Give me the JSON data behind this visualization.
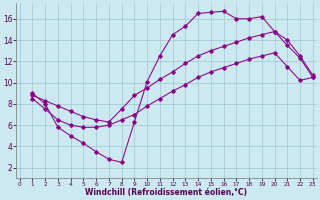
{
  "xlabel": "Windchill (Refroidissement éolien,°C)",
  "background_color": "#cce8f0",
  "line_color": "#880088",
  "xlim": [
    -0.3,
    23.3
  ],
  "ylim": [
    1.0,
    17.5
  ],
  "yticks": [
    2,
    4,
    6,
    8,
    10,
    12,
    14,
    16
  ],
  "xticks": [
    0,
    1,
    2,
    3,
    4,
    5,
    6,
    7,
    8,
    9,
    10,
    11,
    12,
    13,
    14,
    15,
    16,
    17,
    18,
    19,
    20,
    21,
    22,
    23
  ],
  "xtick_labels": [
    "0",
    "1",
    "2",
    "3",
    "4",
    "5",
    "6",
    "7",
    "8",
    "9",
    "10",
    "11",
    "12",
    "13",
    "14",
    "15",
    "16",
    "17",
    "18",
    "19",
    "20",
    "21",
    "22",
    "23"
  ],
  "grid_color": "#a0c8d4",
  "series": [
    {
      "x": [
        1,
        2,
        3,
        4,
        5,
        6,
        7,
        8,
        9,
        10,
        11,
        12,
        13,
        14,
        15,
        16,
        17,
        18,
        19,
        20,
        21,
        22,
        23
      ],
      "y": [
        9.0,
        8.0,
        5.8,
        5.0,
        4.3,
        3.5,
        2.8,
        2.5,
        6.3,
        10.1,
        12.5,
        14.5,
        15.3,
        16.5,
        16.6,
        16.7,
        16.0,
        16.0,
        16.2,
        14.8,
        14.0,
        12.5,
        10.7
      ]
    },
    {
      "x": [
        1,
        2,
        3,
        4,
        5,
        6,
        7,
        8,
        9,
        10,
        11,
        12,
        13,
        14,
        15,
        16,
        17,
        18,
        19,
        20,
        21,
        22,
        23
      ],
      "y": [
        8.8,
        8.3,
        7.8,
        7.3,
        6.8,
        6.5,
        6.3,
        7.5,
        8.8,
        9.5,
        10.3,
        11.0,
        11.8,
        12.5,
        13.0,
        13.4,
        13.8,
        14.2,
        14.5,
        14.8,
        13.5,
        12.3,
        10.5
      ]
    },
    {
      "x": [
        1,
        2,
        3,
        4,
        5,
        6,
        7,
        8,
        9,
        10,
        11,
        12,
        13,
        14,
        15,
        16,
        17,
        18,
        19,
        20,
        21,
        22,
        23
      ],
      "y": [
        8.5,
        7.5,
        6.5,
        6.0,
        5.8,
        5.8,
        6.0,
        6.5,
        7.0,
        7.8,
        8.5,
        9.2,
        9.8,
        10.5,
        11.0,
        11.4,
        11.8,
        12.2,
        12.5,
        12.8,
        11.5,
        10.2,
        10.5
      ]
    }
  ]
}
